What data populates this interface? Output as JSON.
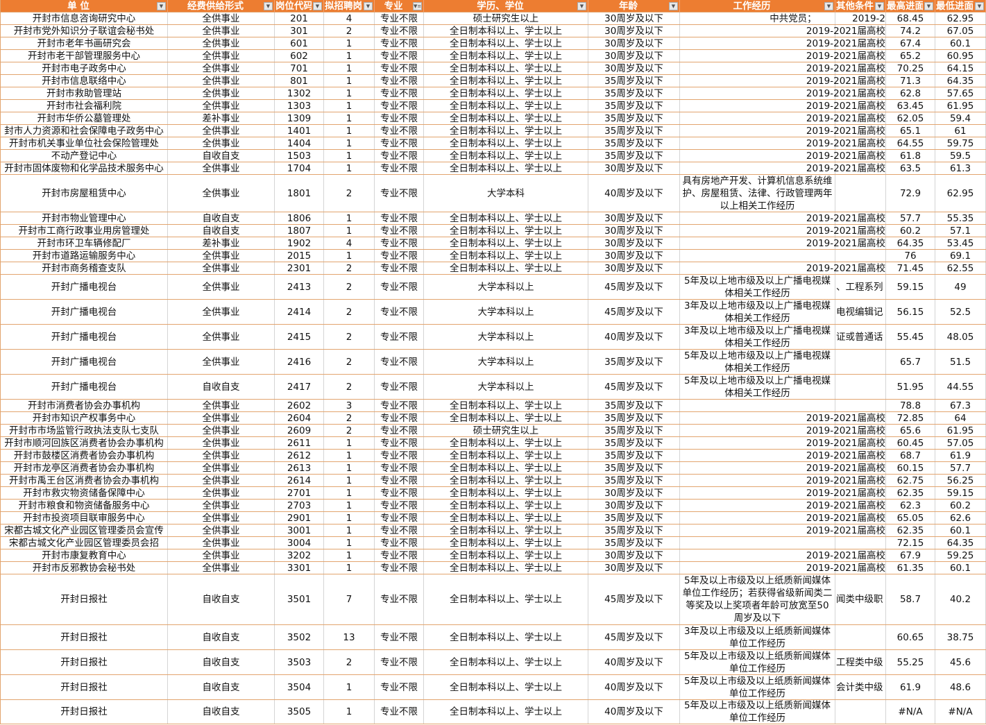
{
  "header": [
    "单 位",
    "经费供给形式",
    "岗位代码",
    "拟招聘岗位数",
    "专业",
    "学历、学位",
    "年龄",
    "工作经历",
    "其他条件",
    "最高进面分",
    "最低进面分"
  ],
  "filter_icons": [
    "dropdown-arrow-icon",
    "dropdown-arrow-icon",
    "dropdown-arrow-icon",
    "dropdown-arrow-icon",
    "filter-active-icon",
    "dropdown-arrow-icon",
    "dropdown-arrow-icon",
    "dropdown-arrow-icon",
    "dropdown-arrow-icon",
    "dropdown-arrow-icon",
    "dropdown-arrow-icon"
  ],
  "colors": {
    "header_bg": "#ED7D31",
    "header_text": "#FFFFFF",
    "row_border": "#E2A46E"
  },
  "rows": [
    [
      "开封市信息咨询研究中心",
      "全供事业",
      "201",
      "4",
      "专业不限",
      "硕士研究生以上",
      "30周岁及以下",
      "",
      "中共党员；            2019-2",
      "68.45",
      "62.95"
    ],
    [
      "开封市党外知识分子联谊会秘书处",
      "全供事业",
      "301",
      "2",
      "专业不限",
      "全日制本科以上、学士以上",
      "30周岁及以下",
      "",
      "2019-2021届高校",
      "74.2",
      "67.05"
    ],
    [
      "开封市老年书画研究会",
      "全供事业",
      "601",
      "1",
      "专业不限",
      "全日制本科以上、学士以上",
      "30周岁及以下",
      "",
      "2019-2021届高校",
      "67.4",
      "60.1"
    ],
    [
      "开封市老干部管理服务中心",
      "全供事业",
      "602",
      "1",
      "专业不限",
      "全日制本科以上、学士以上",
      "30周岁及以下",
      "",
      "2019-2021届高校",
      "65.2",
      "60.95"
    ],
    [
      "开封市电子政务中心",
      "全供事业",
      "701",
      "1",
      "专业不限",
      "全日制本科以上、学士以上",
      "30周岁及以下",
      "",
      "2019-2021届高校",
      "70.25",
      "64.15"
    ],
    [
      "开封市信息联络中心",
      "全供事业",
      "801",
      "1",
      "专业不限",
      "全日制本科以上、学士以上",
      "35周岁及以下",
      "",
      "2019-2021届高校",
      "71.3",
      "64.35"
    ],
    [
      "开封市救助管理站",
      "全供事业",
      "1302",
      "1",
      "专业不限",
      "全日制本科以上、学士以上",
      "35周岁及以下",
      "",
      "2019-2021届高校",
      "62.8",
      "57.65"
    ],
    [
      "开封市社会福利院",
      "全供事业",
      "1303",
      "1",
      "专业不限",
      "全日制本科以上、学士以上",
      "35周岁及以下",
      "",
      "2019-2021届高校",
      "63.45",
      "61.95"
    ],
    [
      "开封市华侨公墓管理处",
      "差补事业",
      "1309",
      "1",
      "专业不限",
      "全日制本科以上、学士以上",
      "35周岁及以下",
      "",
      "2019-2021届高校",
      "62.05",
      "59.4"
    ],
    [
      "封市人力资源和社会保障电子政务中心",
      "全供事业",
      "1401",
      "1",
      "专业不限",
      "全日制本科以上、学士以上",
      "35周岁及以下",
      "",
      "2019-2021届高校",
      "65.1",
      "61"
    ],
    [
      "开封市机关事业单位社会保险管理处",
      "全供事业",
      "1404",
      "1",
      "专业不限",
      "全日制本科以上、学士以上",
      "35周岁及以下",
      "",
      "2019-2021届高校",
      "64.55",
      "59.75"
    ],
    [
      "不动产登记中心",
      "自收自支",
      "1503",
      "1",
      "专业不限",
      "全日制本科以上、学士以上",
      "35周岁及以下",
      "",
      "2019-2021届高校",
      "61.8",
      "59.5"
    ],
    [
      "开封市固体废物和化学品技术服务中心",
      "全供事业",
      "1704",
      "1",
      "专业不限",
      "全日制本科以上、学士以上",
      "30周岁及以下",
      "",
      "2019-2021届高校",
      "63.5",
      "61.3"
    ],
    [
      "开封市房屋租赁中心",
      "全供事业",
      "1801",
      "2",
      "专业不限",
      "大学本科",
      "40周岁及以下",
      "具有房地产开发、计算机信息系统维护、房屋租赁、法律、行政管理两年以上相关工作经历",
      "",
      "72.9",
      "62.95"
    ],
    [
      "开封市物业管理中心",
      "自收自支",
      "1806",
      "1",
      "专业不限",
      "全日制本科以上、学士以上",
      "30周岁及以下",
      "",
      "2019-2021届高校",
      "57.7",
      "55.35"
    ],
    [
      "开封市工商行政事业用房管理处",
      "自收自支",
      "1807",
      "1",
      "专业不限",
      "全日制本科以上、学士以上",
      "30周岁及以下",
      "",
      "2019-2021届高校",
      "60.2",
      "57.1"
    ],
    [
      "开封市环卫车辆修配厂",
      "差补事业",
      "1902",
      "4",
      "专业不限",
      "全日制本科以上、学士以上",
      "30周岁及以下",
      "",
      "2019-2021届高校",
      "64.35",
      "53.45"
    ],
    [
      "开封市道路运输服务中心",
      "全供事业",
      "2015",
      "1",
      "专业不限",
      "全日制本科以上、学士以上",
      "30周岁及以下",
      "",
      "",
      "76",
      "69.1"
    ],
    [
      "开封市商务稽查支队",
      "全供事业",
      "2301",
      "2",
      "专业不限",
      "全日制本科以上、学士以上",
      "30周岁及以下",
      "",
      "2019-2021届高校",
      "71.45",
      "62.55"
    ],
    [
      "开封广播电视台",
      "全供事业",
      "2413",
      "2",
      "专业不限",
      "大学本科以上",
      "45周岁及以下",
      "5年及以上地市级及以上广播电视媒体相关工作经历",
      "、工程系列",
      "59.15",
      "49"
    ],
    [
      "开封广播电视台",
      "全供事业",
      "2414",
      "2",
      "专业不限",
      "大学本科以上",
      "45周岁及以下",
      "3年及以上地市级及以上广播电视媒体相关工作经历",
      "电视编辑记",
      "56.15",
      "52.5"
    ],
    [
      "开封广播电视台",
      "全供事业",
      "2415",
      "2",
      "专业不限",
      "大学本科以上",
      "40周岁及以下",
      "3年及以上地市级及以上广播电视媒体相关工作经历",
      "证或普通话",
      "55.45",
      "48.05"
    ],
    [
      "开封广播电视台",
      "全供事业",
      "2416",
      "2",
      "专业不限",
      "大学本科以上",
      "35周岁及以下",
      "5年及以上地市级及以上广播电视媒体相关工作经历",
      "",
      "65.7",
      "51.5"
    ],
    [
      "开封广播电视台",
      "自收自支",
      "2417",
      "2",
      "专业不限",
      "大学本科以上",
      "45周岁及以下",
      "5年及以上地市级及以上广播电视媒体相关工作经历",
      "",
      "51.95",
      "44.55"
    ],
    [
      "开封市消费者协会办事机构",
      "全供事业",
      "2602",
      "3",
      "专业不限",
      "全日制本科以上、学士以上",
      "35周岁及以下",
      "",
      "",
      "78.8",
      "67.3"
    ],
    [
      "开封市知识产权事务中心",
      "全供事业",
      "2604",
      "2",
      "专业不限",
      "全日制本科以上、学士以上",
      "35周岁及以下",
      "",
      "2019-2021届高校",
      "72.85",
      "64"
    ],
    [
      "开封市市场监管行政执法支队七支队",
      "全供事业",
      "2609",
      "2",
      "专业不限",
      "硕士研究生以上",
      "35周岁及以下",
      "",
      "2019-2021届高校",
      "65.6",
      "61.95"
    ],
    [
      "开封市顺河回族区消费者协会办事机构",
      "全供事业",
      "2611",
      "1",
      "专业不限",
      "全日制本科以上、学士以上",
      "35周岁及以下",
      "",
      "2019-2021届高校",
      "60.45",
      "57.05"
    ],
    [
      "开封市鼓楼区消费者协会办事机构",
      "全供事业",
      "2612",
      "1",
      "专业不限",
      "全日制本科以上、学士以上",
      "35周岁及以下",
      "",
      "2019-2021届高校",
      "68.7",
      "61.9"
    ],
    [
      "开封市龙亭区消费者协会办事机构",
      "全供事业",
      "2613",
      "1",
      "专业不限",
      "全日制本科以上、学士以上",
      "35周岁及以下",
      "",
      "2019-2021届高校",
      "60.15",
      "57.7"
    ],
    [
      "开封市禹王台区消费者协会办事机构",
      "全供事业",
      "2614",
      "1",
      "专业不限",
      "全日制本科以上、学士以上",
      "35周岁及以下",
      "",
      "2019-2021届高校",
      "62.75",
      "56.25"
    ],
    [
      "开封市救灾物资储备保障中心",
      "全供事业",
      "2701",
      "1",
      "专业不限",
      "全日制本科以上、学士以上",
      "30周岁及以下",
      "",
      "2019-2021届高校",
      "62.35",
      "59.15"
    ],
    [
      "开封市粮食和物资储备服务中心",
      "全供事业",
      "2703",
      "1",
      "专业不限",
      "全日制本科以上、学士以上",
      "30周岁及以下",
      "",
      "2019-2021届高校",
      "62.3",
      "60.2"
    ],
    [
      "开封市投资项目联审服务中心",
      "全供事业",
      "2901",
      "1",
      "专业不限",
      "全日制本科以上、学士以上",
      "35周岁及以下",
      "",
      "2019-2021届高校",
      "65.05",
      "62.6"
    ],
    [
      "宋都古城文化产业园区管理委员会宣传",
      "全供事业",
      "3001",
      "1",
      "专业不限",
      "全日制本科以上、学士以上",
      "35周岁及以下",
      "",
      "2019-2021届高校",
      "62.35",
      "60.1"
    ],
    [
      "宋都古城文化产业园区管理委员会招",
      "全供事业",
      "3004",
      "1",
      "专业不限",
      "全日制本科以上、学士以上",
      "35周岁及以下",
      "",
      "",
      "72.15",
      "64.35"
    ],
    [
      "开封市康复教育中心",
      "全供事业",
      "3202",
      "1",
      "专业不限",
      "全日制本科以上、学士以上",
      "30周岁及以下",
      "",
      "2019-2021届高校",
      "67.9",
      "59.25"
    ],
    [
      "开封市反邪教协会秘书处",
      "全供事业",
      "3301",
      "1",
      "专业不限",
      "全日制本科以上、学士以上",
      "30周岁及以下",
      "",
      "2019-2021届高校",
      "61.35",
      "60.1"
    ],
    [
      "开封日报社",
      "自收自支",
      "3501",
      "7",
      "专业不限",
      "全日制本科以上、学士以上",
      "45周岁及以下",
      "5年及以上市级及以上纸质新闻媒体单位工作经历；若获得省级新闻类二等奖及以上奖项者年龄可放宽至50周岁及以下",
      "闻类中级职",
      "58.7",
      "40.2"
    ],
    [
      "开封日报社",
      "自收自支",
      "3502",
      "13",
      "专业不限",
      "全日制本科以上、学士以上",
      "45周岁及以下",
      "3年及以上市级及以上纸质新闻媒体单位工作经历",
      "",
      "60.65",
      "38.75"
    ],
    [
      "开封日报社",
      "自收自支",
      "3503",
      "2",
      "专业不限",
      "全日制本科以上、学士以上",
      "40周岁及以下",
      "5年及以上市级及以上纸质新闻媒体单位工作经历",
      "工程类中级",
      "55.25",
      "45.6"
    ],
    [
      "开封日报社",
      "自收自支",
      "3504",
      "1",
      "专业不限",
      "全日制本科以上、学士以上",
      "40周岁及以下",
      "5年及以上市级及以上纸质新闻媒体单位工作经历",
      "会计类中级",
      "61.9",
      "48.6"
    ],
    [
      "开封日报社",
      "自收自支",
      "3505",
      "1",
      "专业不限",
      "全日制本科以上、学士以上",
      "40周岁及以下",
      "5年及以上市级及以上纸质新闻媒体单位工作经历",
      "",
      "#N/A",
      "#N/A"
    ]
  ]
}
